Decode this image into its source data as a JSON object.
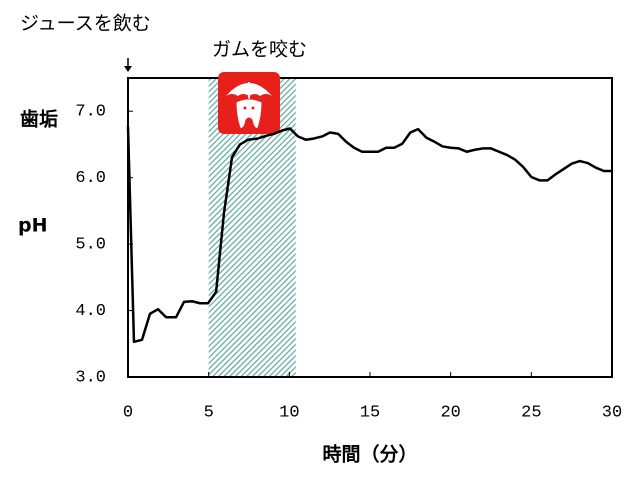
{
  "chart_data": {
    "type": "line",
    "annotations": [
      "ジュースを飲む",
      "ガムを咬む"
    ],
    "y_label": [
      "歯垢",
      "pH"
    ],
    "x_label": "時間（分）",
    "x": [
      0,
      0.37,
      0.87,
      1.36,
      1.86,
      2.36,
      2.98,
      3.47,
      3.97,
      4.46,
      4.96,
      5.46,
      5.95,
      6.45,
      6.94,
      7.44,
      8.06,
      8.56,
      9.05,
      9.55,
      10.04,
      10.54,
      11.04,
      11.53,
      12.03,
      12.52,
      13.02,
      13.52,
      14.01,
      14.51,
      15,
      15.5,
      16,
      16.5,
      17,
      17.5,
      17.98,
      18.5,
      19,
      19.5,
      20,
      20.5,
      21,
      21.5,
      22,
      22.5,
      23,
      23.5,
      24,
      24.5,
      25,
      25.5,
      26,
      26.5,
      27,
      27.5,
      28,
      28.5,
      29,
      29.5,
      30
    ],
    "series": [
      {
        "color": "#000000",
        "values": [
          6.77,
          3.53,
          3.56,
          3.95,
          4.02,
          3.9,
          3.9,
          4.13,
          4.14,
          4.11,
          4.11,
          4.28,
          5.47,
          6.31,
          6.5,
          6.57,
          6.59,
          6.63,
          6.66,
          6.71,
          6.74,
          6.62,
          6.57,
          6.59,
          6.62,
          6.68,
          6.66,
          6.54,
          6.45,
          6.39,
          6.39,
          6.39,
          6.45,
          6.45,
          6.51,
          6.68,
          6.73,
          6.6,
          6.54,
          6.47,
          6.45,
          6.44,
          6.39,
          6.42,
          6.44,
          6.44,
          6.39,
          6.34,
          6.27,
          6.16,
          6.01,
          5.96,
          5.96,
          6.05,
          6.13,
          6.21,
          6.25,
          6.22,
          6.15,
          6.1,
          6.1
        ]
      }
    ],
    "shade": [
      5,
      10.4
    ],
    "shade_color": "#5aa9a0",
    "xlim": [
      0,
      30
    ],
    "xticks": [
      0,
      5,
      10,
      15,
      20,
      25,
      30
    ],
    "ylim": [
      3,
      7.5
    ],
    "yticks": [
      {
        "value": 3,
        "label": "3.0"
      },
      {
        "value": 4,
        "label": "4.0"
      },
      {
        "value": 5,
        "label": "5.0"
      },
      {
        "value": 6,
        "label": "6.0"
      },
      {
        "value": 7,
        "label": "7.0"
      }
    ]
  }
}
